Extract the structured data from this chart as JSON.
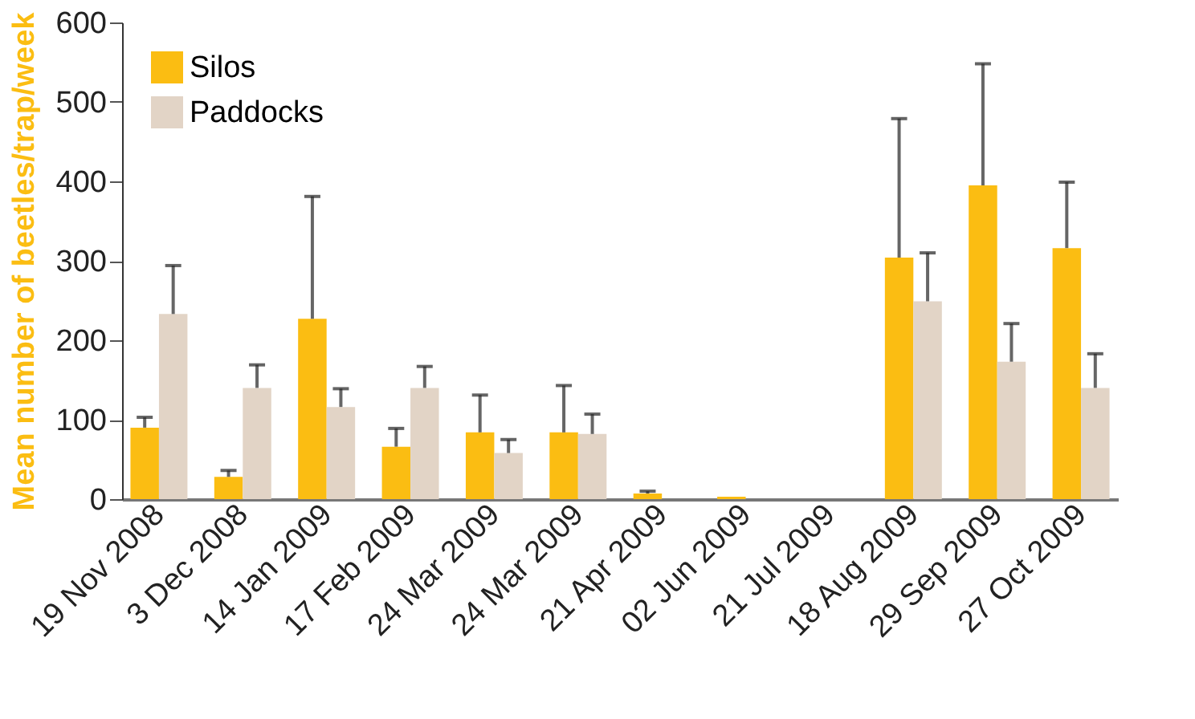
{
  "chart_data": {
    "type": "bar",
    "ylabel": "Mean number of beetles/trap/week",
    "categories": [
      "19 Nov 2008",
      "3 Dec 2008",
      "14 Jan 2009",
      "17 Feb 2009",
      "24 Mar 2009",
      "24 Mar 2009",
      "21 Apr 2009",
      "02 Jun 2009",
      "21 Jul 2009",
      "18 Aug 2009",
      "29 Sep 2009",
      "27 Oct 2009"
    ],
    "series": [
      {
        "name": "Silos",
        "color": "#fbbd12",
        "values": [
          90,
          28,
          227,
          66,
          84,
          84,
          7,
          3,
          null,
          304,
          395,
          316
        ],
        "errors": [
          [
            90,
            103
          ],
          [
            28,
            36
          ],
          [
            227,
            381
          ],
          [
            66,
            89
          ],
          [
            84,
            131
          ],
          [
            84,
            143
          ],
          [
            7,
            10
          ],
          null,
          null,
          [
            304,
            479
          ],
          [
            395,
            548
          ],
          [
            316,
            399
          ]
        ]
      },
      {
        "name": "Paddocks",
        "color": "#e2d4c6",
        "values": [
          233,
          140,
          116,
          140,
          58,
          82,
          null,
          null,
          null,
          249,
          173,
          140
        ],
        "errors": [
          [
            233,
            294
          ],
          [
            140,
            169
          ],
          [
            116,
            139
          ],
          [
            140,
            167
          ],
          [
            58,
            75
          ],
          [
            82,
            107
          ],
          null,
          null,
          null,
          [
            249,
            310
          ],
          [
            173,
            221
          ],
          [
            140,
            183
          ]
        ]
      }
    ],
    "ylim": [
      0,
      600
    ],
    "yticks": [
      0,
      100,
      200,
      300,
      400,
      500,
      600
    ],
    "grid": false,
    "legend": "top left"
  }
}
